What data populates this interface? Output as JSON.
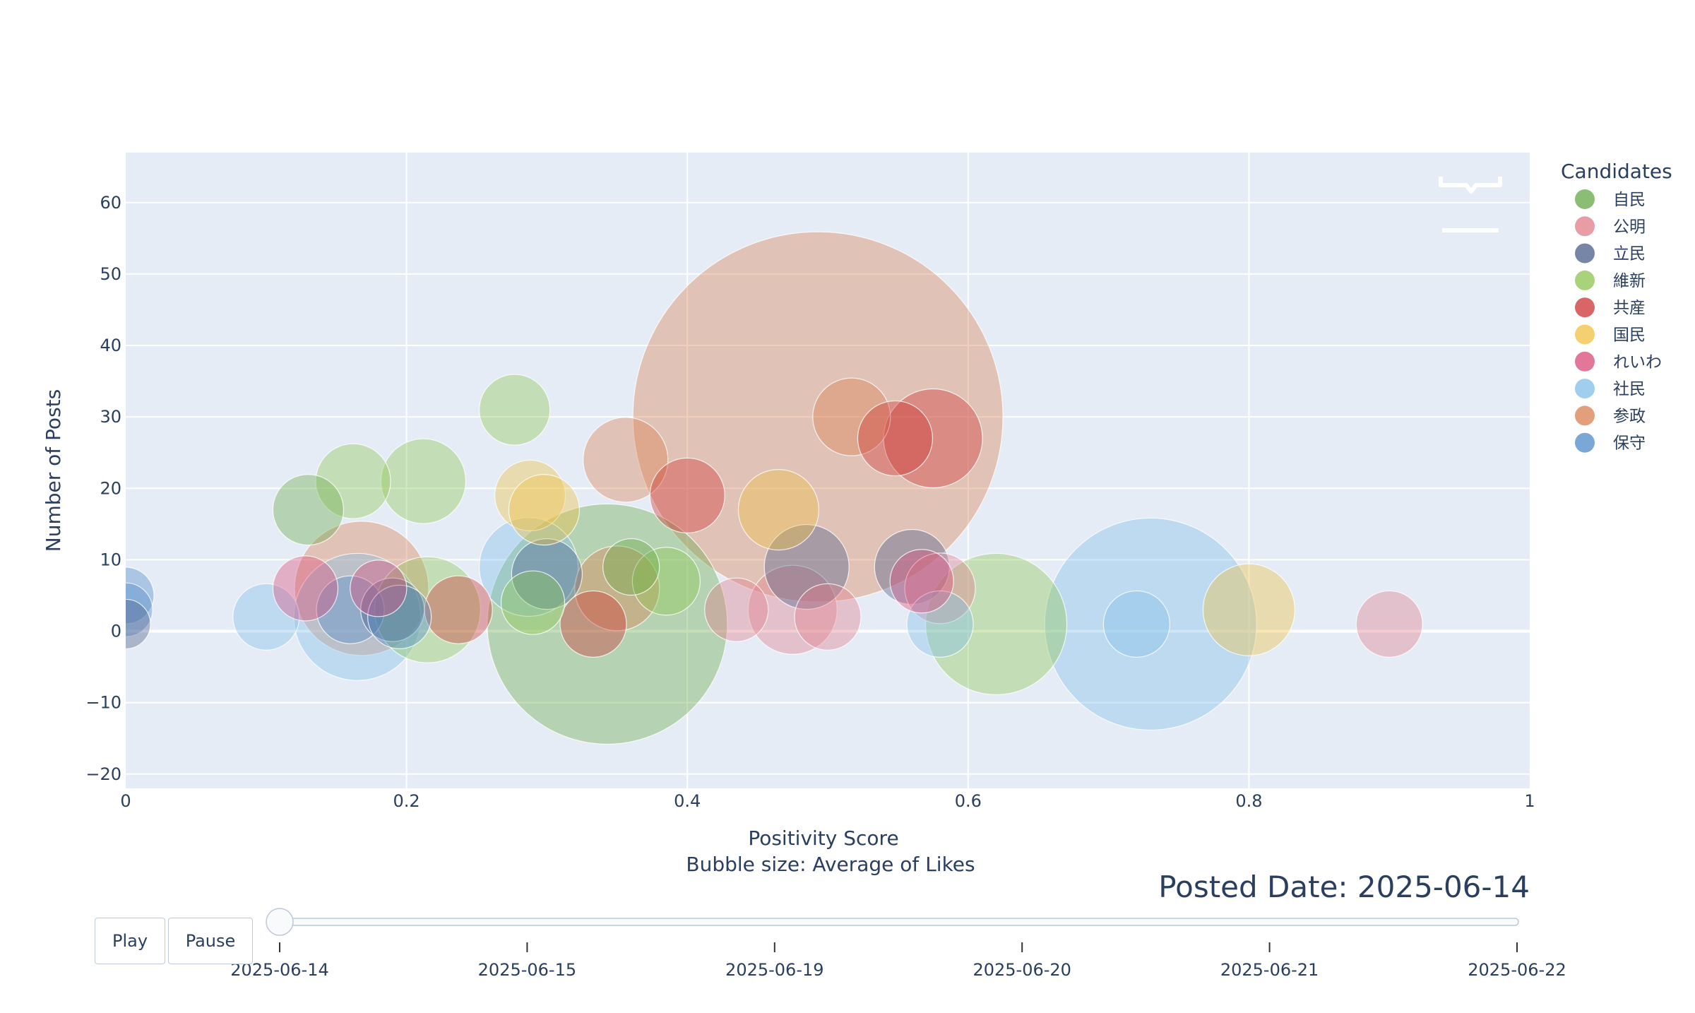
{
  "chart_data": {
    "type": "scatter",
    "xlabel": "Positivity Score",
    "xlabel_sub": "Bubble size: Average of Likes",
    "ylabel": "Number of Posts",
    "xlim": [
      0,
      1
    ],
    "ylim": [
      -22,
      67
    ],
    "x_ticks": [
      "0",
      "0.2",
      "0.4",
      "0.6",
      "0.8",
      "1"
    ],
    "y_ticks": [
      "−20",
      "−10",
      "0",
      "10",
      "20",
      "30",
      "40",
      "50",
      "60"
    ],
    "grid": true,
    "legend_title": "Candidates",
    "legend_position": "right",
    "series": [
      {
        "name": "自民",
        "color": "#66a745",
        "points": [
          {
            "x": 0.13,
            "y": 17,
            "size": 50
          },
          {
            "x": 0.343,
            "y": 1,
            "size": 170
          },
          {
            "x": 0.36,
            "y": 9,
            "size": 40
          }
        ]
      },
      {
        "name": "公明",
        "color": "#e07b88",
        "points": [
          {
            "x": 0.9,
            "y": 1,
            "size": 47
          },
          {
            "x": 0.435,
            "y": 3,
            "size": 45
          },
          {
            "x": 0.475,
            "y": 3,
            "size": 63
          },
          {
            "x": 0.5,
            "y": 2,
            "size": 47
          },
          {
            "x": 0.58,
            "y": 6,
            "size": 50
          }
        ]
      },
      {
        "name": "立民",
        "color": "#4a5d8a",
        "points": [
          {
            "x": 0.0,
            "y": 1,
            "size": 35
          },
          {
            "x": 0.19,
            "y": 3,
            "size": 45
          },
          {
            "x": 0.485,
            "y": 9,
            "size": 60
          },
          {
            "x": 0.56,
            "y": 9,
            "size": 53
          },
          {
            "x": 0.3,
            "y": 8,
            "size": 50
          }
        ]
      },
      {
        "name": "維新",
        "color": "#8cc44e",
        "points": [
          {
            "x": 0.162,
            "y": 21,
            "size": 53
          },
          {
            "x": 0.212,
            "y": 21,
            "size": 60
          },
          {
            "x": 0.277,
            "y": 31,
            "size": 50
          },
          {
            "x": 0.62,
            "y": 1,
            "size": 100
          },
          {
            "x": 0.215,
            "y": 3,
            "size": 75
          },
          {
            "x": 0.385,
            "y": 7,
            "size": 48
          },
          {
            "x": 0.29,
            "y": 4,
            "size": 45
          }
        ]
      },
      {
        "name": "共産",
        "color": "#cc3333",
        "points": [
          {
            "x": 0.237,
            "y": 3,
            "size": 48
          },
          {
            "x": 0.4,
            "y": 19,
            "size": 53
          },
          {
            "x": 0.548,
            "y": 27,
            "size": 53
          },
          {
            "x": 0.575,
            "y": 27,
            "size": 70
          },
          {
            "x": 0.333,
            "y": 1,
            "size": 47
          }
        ]
      },
      {
        "name": "国民",
        "color": "#f0c040",
        "points": [
          {
            "x": 0.288,
            "y": 19,
            "size": 50
          },
          {
            "x": 0.298,
            "y": 17,
            "size": 50
          },
          {
            "x": 0.8,
            "y": 3,
            "size": 65
          },
          {
            "x": 0.465,
            "y": 17,
            "size": 57
          }
        ]
      },
      {
        "name": "れいわ",
        "color": "#d94a78",
        "points": [
          {
            "x": 0.128,
            "y": 6,
            "size": 46
          },
          {
            "x": 0.18,
            "y": 6,
            "size": 40
          },
          {
            "x": 0.567,
            "y": 7,
            "size": 45
          }
        ]
      },
      {
        "name": "社民",
        "color": "#7fbde8",
        "points": [
          {
            "x": 0.73,
            "y": 1,
            "size": 150
          },
          {
            "x": 0.72,
            "y": 1,
            "size": 47
          },
          {
            "x": 0.1,
            "y": 2,
            "size": 47
          },
          {
            "x": 0.165,
            "y": 2,
            "size": 90
          },
          {
            "x": 0.287,
            "y": 9,
            "size": 70
          },
          {
            "x": 0.58,
            "y": 1,
            "size": 47
          }
        ]
      },
      {
        "name": "参政",
        "color": "#d97f50",
        "points": [
          {
            "x": 0.493,
            "y": 30,
            "size": 262
          },
          {
            "x": 0.168,
            "y": 6,
            "size": 95
          },
          {
            "x": 0.356,
            "y": 24,
            "size": 60
          },
          {
            "x": 0.517,
            "y": 30,
            "size": 55
          },
          {
            "x": 0.35,
            "y": 6,
            "size": 60
          }
        ]
      },
      {
        "name": "保守",
        "color": "#4d8ac8",
        "points": [
          {
            "x": 0.0,
            "y": 5,
            "size": 40
          },
          {
            "x": 0.0,
            "y": 3,
            "size": 38
          },
          {
            "x": 0.195,
            "y": 2,
            "size": 45
          },
          {
            "x": 0.16,
            "y": 3,
            "size": 48
          }
        ]
      }
    ]
  },
  "animation": {
    "current_label": "Posted Date: 2025-06-14",
    "play_label": "Play",
    "pause_label": "Pause",
    "slider_steps": [
      "2025-06-14",
      "2025-06-15",
      "2025-06-19",
      "2025-06-20",
      "2025-06-21",
      "2025-06-22"
    ],
    "active_step": 0
  },
  "modebar": {
    "icons": [
      "autoscale-icon",
      "reset-axes-icon"
    ]
  }
}
